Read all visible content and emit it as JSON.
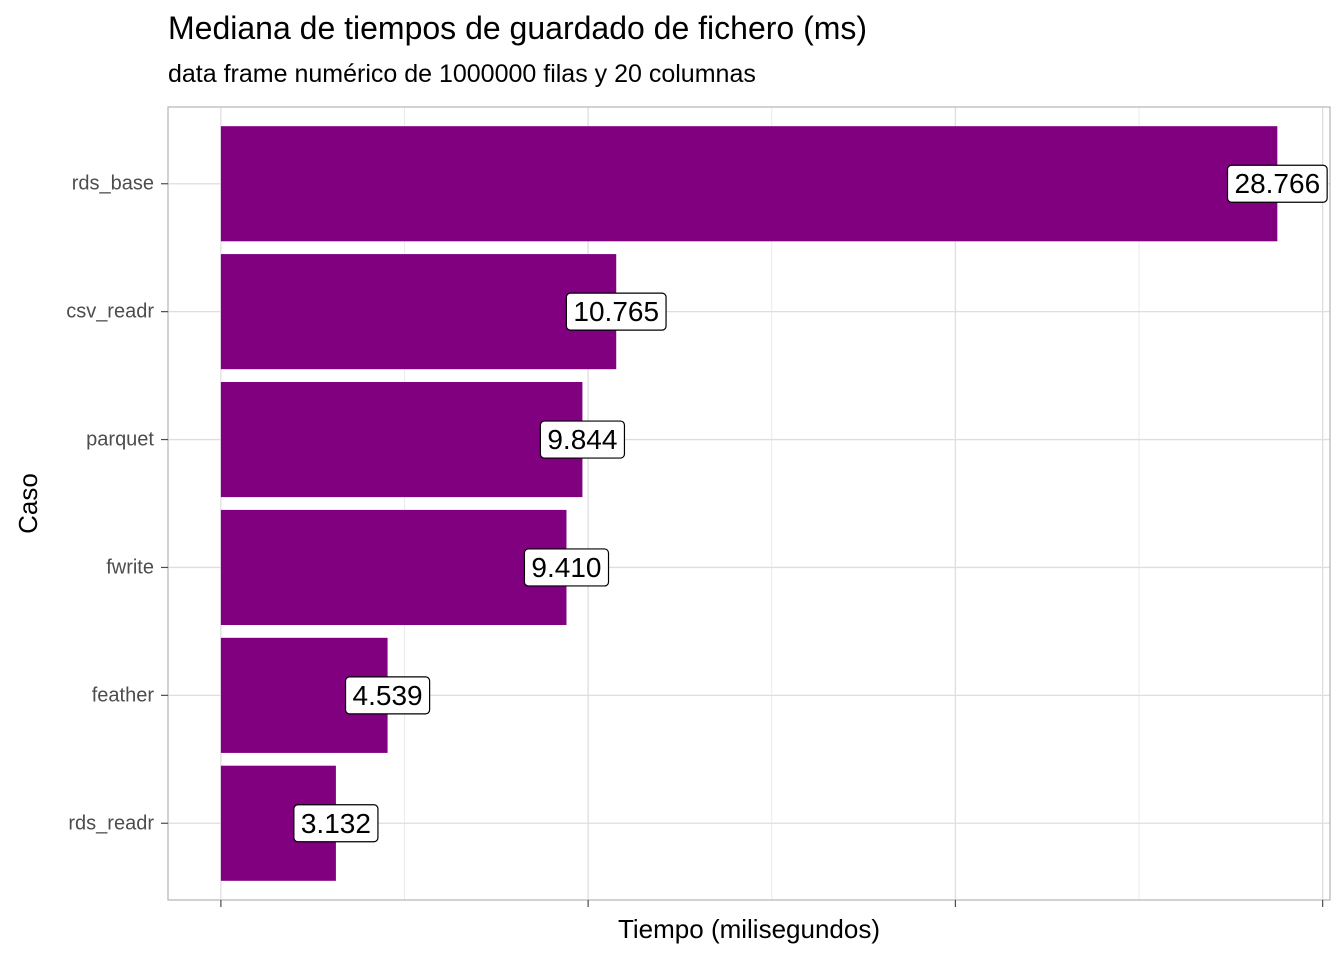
{
  "chart_data": {
    "type": "bar",
    "orientation": "horizontal",
    "title": "Mediana de tiempos de guardado de fichero (ms)",
    "subtitle": "data frame numérico de 1000000 filas y 20 columnas",
    "xlabel": "Tiempo (milisegundos)",
    "ylabel": "Caso",
    "categories": [
      "rds_base",
      "csv_readr",
      "parquet",
      "fwrite",
      "feather",
      "rds_readr"
    ],
    "values": [
      28.766,
      10.765,
      9.844,
      9.41,
      4.539,
      3.132
    ],
    "data_labels": [
      "28.766",
      "10.765",
      "9.844",
      "9.410",
      "4.539",
      "3.132"
    ],
    "xlim": [
      -1.44,
      30.2
    ],
    "major_x_breaks": [
      0,
      10,
      20,
      30
    ],
    "minor_x_breaks": [
      5,
      15,
      25
    ],
    "x_tick_labels_visible": false,
    "grid": true,
    "bar_color": "#800080",
    "theme": "light"
  }
}
